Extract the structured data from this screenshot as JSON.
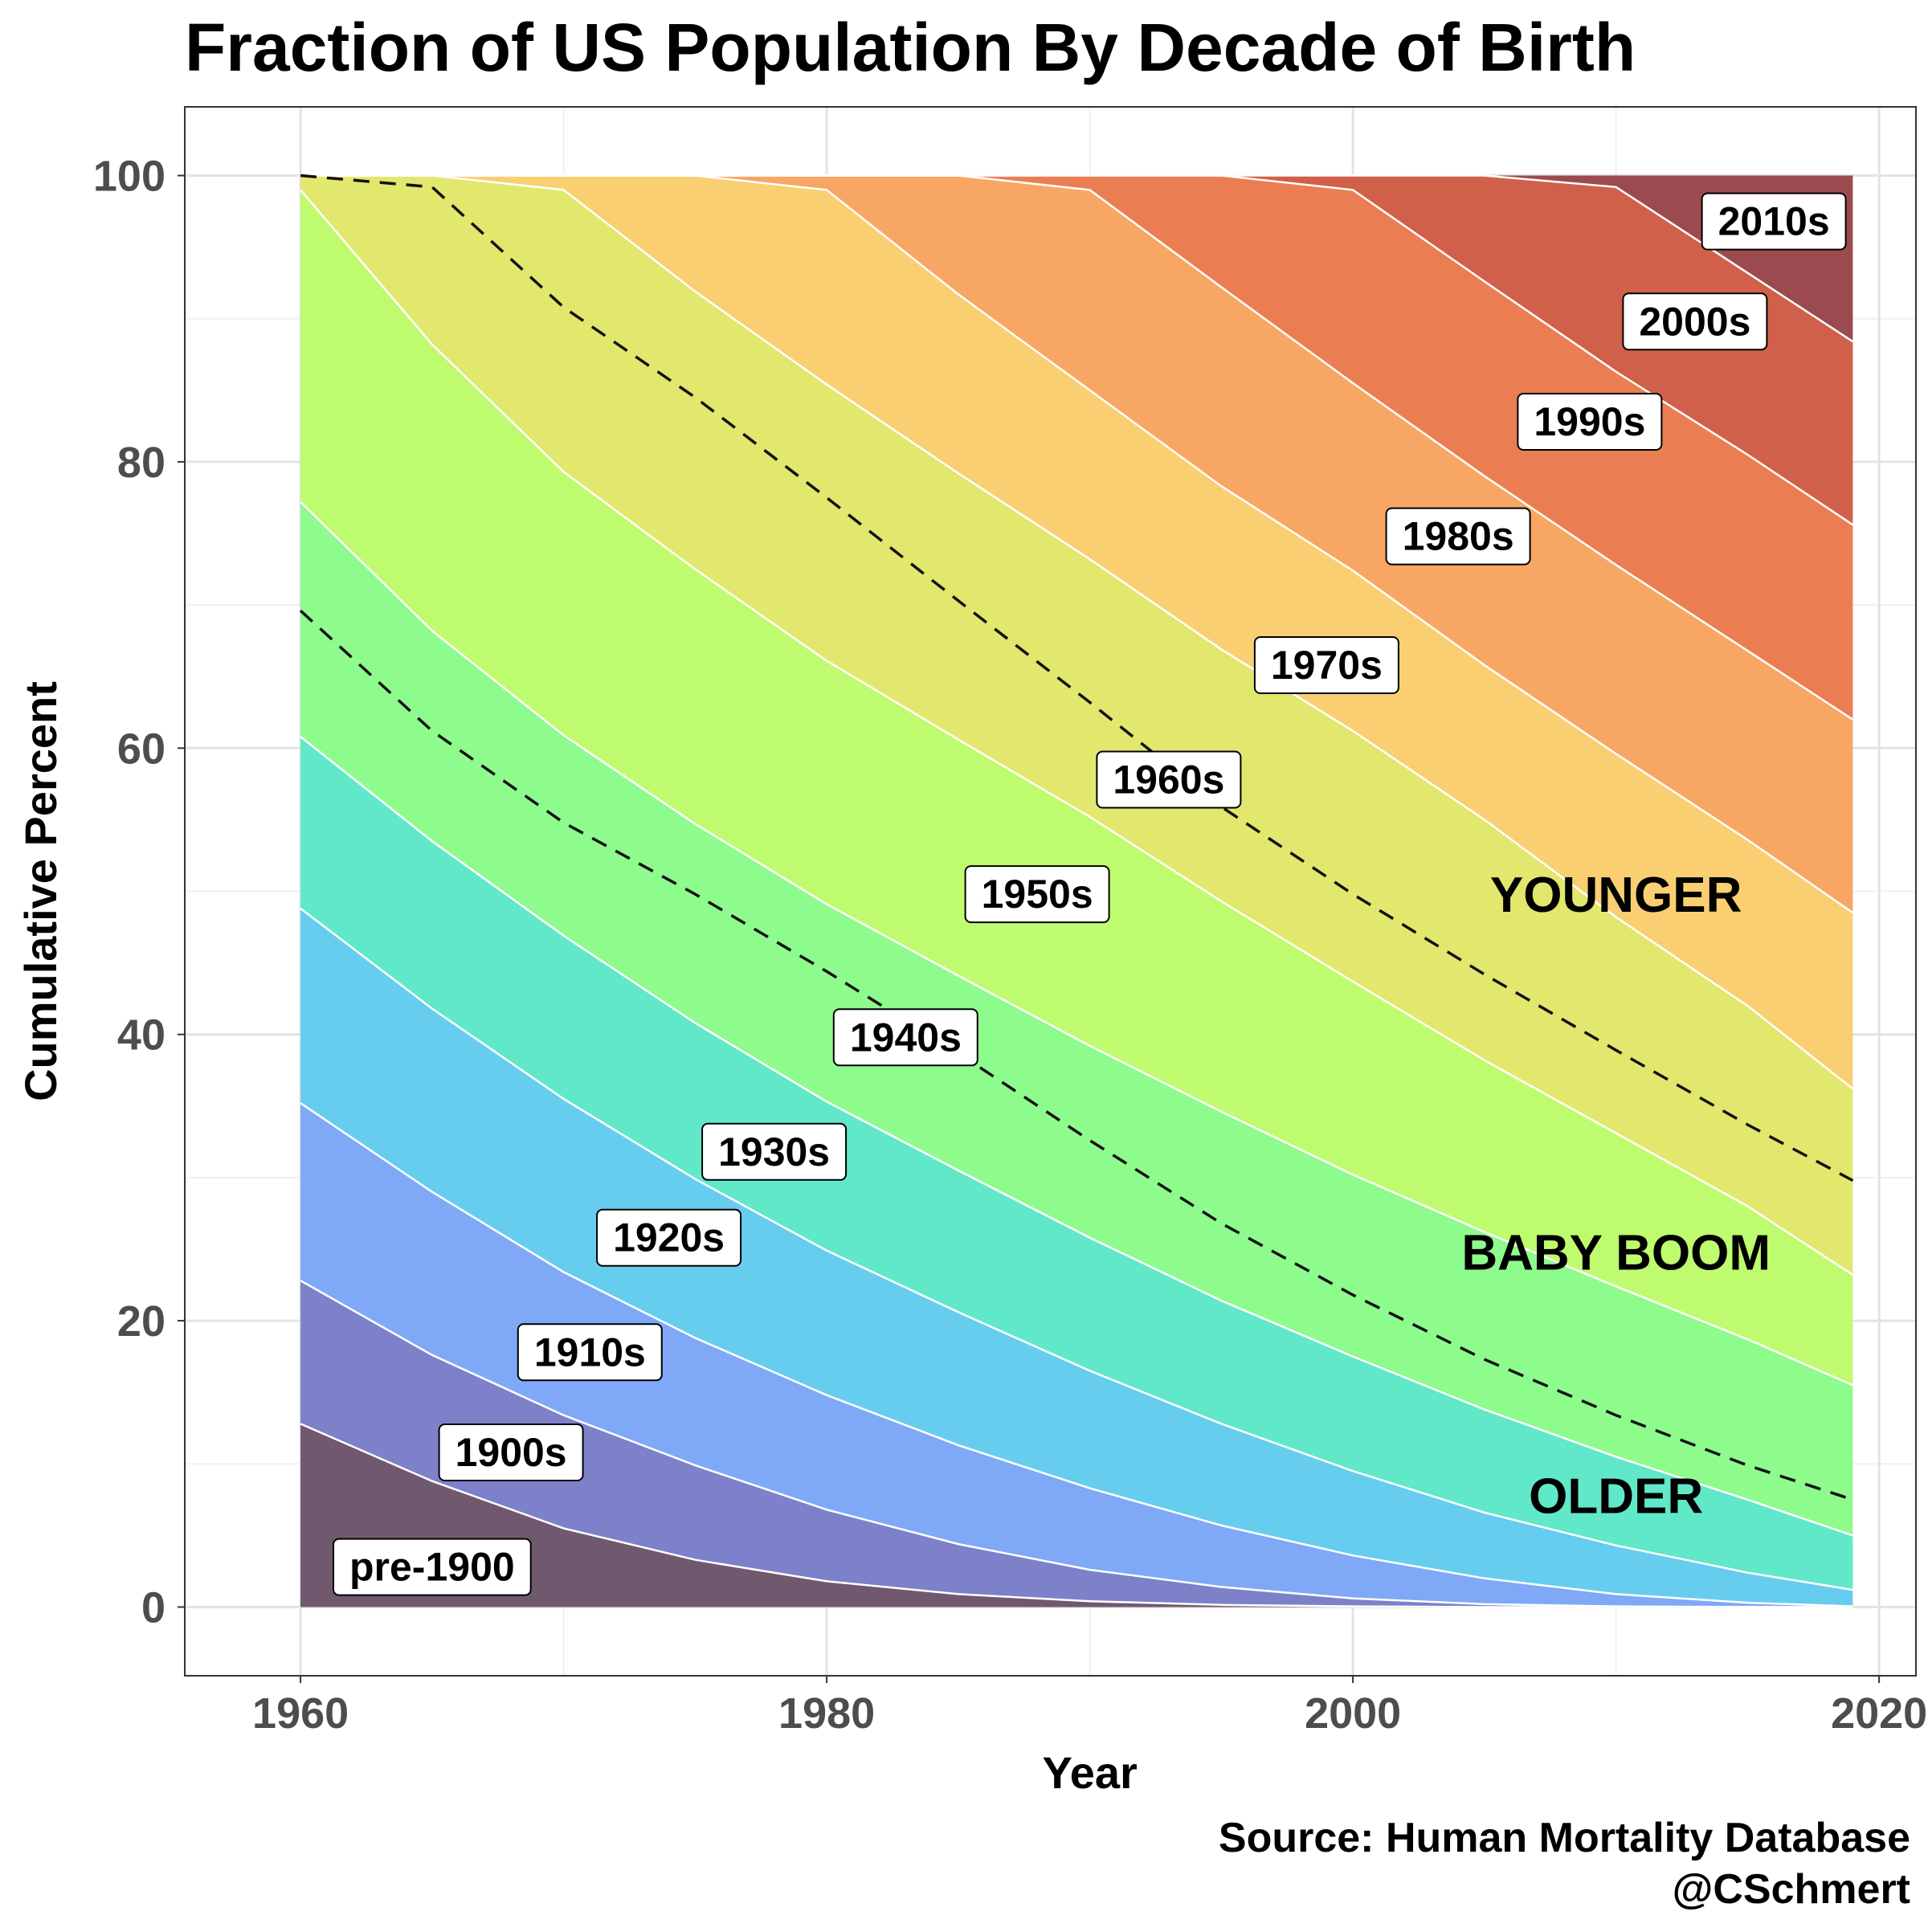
{
  "chart_data": {
    "type": "area",
    "title": "Fraction of US Population By Decade of Birth",
    "xlabel": "Year",
    "ylabel": "Cumulative Percent",
    "xlim": [
      1955.6,
      2021.4
    ],
    "ylim": [
      -4.8,
      104.8
    ],
    "x_ticks": [
      1960,
      1980,
      2000,
      2020
    ],
    "y_ticks": [
      0,
      20,
      40,
      60,
      80,
      100
    ],
    "grid": true,
    "x": [
      1960,
      1965,
      1970,
      1975,
      1980,
      1985,
      1990,
      1995,
      2000,
      2005,
      2010,
      2015,
      2019
    ],
    "boundaries": [
      {
        "name": "pre-1900",
        "values": [
          12.8,
          8.8,
          5.5,
          3.3,
          1.8,
          0.9,
          0.4,
          0.15,
          0.05,
          0,
          0,
          0,
          0
        ]
      },
      {
        "name": "1900s",
        "values": [
          22.8,
          17.6,
          13.4,
          9.9,
          6.8,
          4.4,
          2.6,
          1.4,
          0.6,
          0.2,
          0.05,
          0,
          0
        ]
      },
      {
        "name": "1910s",
        "values": [
          35.2,
          29.0,
          23.4,
          18.8,
          14.8,
          11.3,
          8.3,
          5.7,
          3.6,
          2.0,
          0.9,
          0.3,
          0.05
        ]
      },
      {
        "name": "1920s",
        "values": [
          48.8,
          41.8,
          35.5,
          29.9,
          24.9,
          20.6,
          16.5,
          12.8,
          9.5,
          6.6,
          4.3,
          2.4,
          1.2
        ]
      },
      {
        "name": "1930s",
        "values": [
          60.8,
          53.5,
          46.9,
          40.8,
          35.3,
          30.5,
          25.8,
          21.4,
          17.5,
          13.8,
          10.5,
          7.5,
          5.0
        ]
      },
      {
        "name": "1940s",
        "values": [
          77.2,
          68.2,
          60.9,
          54.7,
          49.1,
          44.1,
          39.2,
          34.6,
          30.2,
          26.2,
          22.4,
          18.7,
          15.5
        ]
      },
      {
        "name": "1950s",
        "values": [
          99.0,
          88.2,
          79.3,
          72.5,
          66.1,
          60.6,
          55.2,
          49.3,
          43.7,
          38.2,
          33.1,
          28.0,
          23.2
        ]
      },
      {
        "name": "1960s",
        "values": [
          100,
          100,
          99.0,
          91.9,
          85.4,
          79.2,
          73.2,
          66.9,
          61.2,
          55.0,
          48.2,
          42.0,
          36.2
        ]
      },
      {
        "name": "1970s",
        "values": [
          100,
          100,
          100,
          100,
          99.0,
          91.7,
          85.0,
          78.3,
          72.4,
          65.8,
          59.6,
          53.6,
          48.5
        ]
      },
      {
        "name": "1980s",
        "values": [
          100,
          100,
          100,
          100,
          100,
          100,
          99.0,
          92.2,
          85.5,
          79.0,
          72.8,
          66.8,
          62.0
        ]
      },
      {
        "name": "1990s",
        "values": [
          100,
          100,
          100,
          100,
          100,
          100,
          100,
          100,
          99.0,
          92.6,
          86.3,
          80.5,
          75.6
        ]
      },
      {
        "name": "2000s",
        "values": [
          100,
          100,
          100,
          100,
          100,
          100,
          100,
          100,
          100,
          100,
          99.2,
          93.2,
          88.4
        ]
      },
      {
        "name": "2010s",
        "values": [
          100,
          100,
          100,
          100,
          100,
          100,
          100,
          100,
          100,
          100,
          100,
          100,
          100
        ]
      }
    ],
    "band_colors": [
      "#70586f",
      "#7d81c9",
      "#7fa9f7",
      "#67cdef",
      "#61e8c9",
      "#8efb8d",
      "#bffb6e",
      "#e2e76d",
      "#f9cf72",
      "#f8a664",
      "#ea7e52",
      "#d06049",
      "#9b4b4f"
    ],
    "dashed_lines": [
      {
        "values": [
          69.6,
          61.2,
          54.8,
          49.8,
          44.4,
          38.7,
          32.6,
          26.8,
          21.8,
          17.3,
          13.4,
          9.9,
          7.5
        ]
      },
      {
        "values": [
          100,
          99.2,
          90.8,
          84.5,
          77.5,
          70.3,
          63.2,
          55.9,
          49.8,
          44.2,
          38.9,
          33.7,
          29.8
        ]
      }
    ],
    "band_labels": [
      {
        "text": "pre-1900",
        "x": 1965.0,
        "y": 2.8
      },
      {
        "text": "1900s",
        "x": 1968.0,
        "y": 10.8
      },
      {
        "text": "1910s",
        "x": 1971.0,
        "y": 17.8
      },
      {
        "text": "1920s",
        "x": 1974.0,
        "y": 25.8
      },
      {
        "text": "1930s",
        "x": 1978.0,
        "y": 31.8
      },
      {
        "text": "1940s",
        "x": 1983.0,
        "y": 39.8
      },
      {
        "text": "1950s",
        "x": 1988.0,
        "y": 49.8
      },
      {
        "text": "1960s",
        "x": 1993.0,
        "y": 57.8
      },
      {
        "text": "1970s",
        "x": 1999.0,
        "y": 65.8
      },
      {
        "text": "1980s",
        "x": 2004.0,
        "y": 74.8
      },
      {
        "text": "1990s",
        "x": 2009.0,
        "y": 82.8
      },
      {
        "text": "2000s",
        "x": 2013.0,
        "y": 89.8
      },
      {
        "text": "2010s",
        "x": 2016.0,
        "y": 96.8
      }
    ],
    "annotations": [
      {
        "text": "YOUNGER",
        "x": 2010.0,
        "y": 49.8
      },
      {
        "text": "BABY BOOM",
        "x": 2010.0,
        "y": 24.8
      },
      {
        "text": "OLDER",
        "x": 2010.0,
        "y": 7.8
      }
    ],
    "caption_lines": [
      "Source: Human Mortality Database",
      "@CSchmert"
    ]
  }
}
